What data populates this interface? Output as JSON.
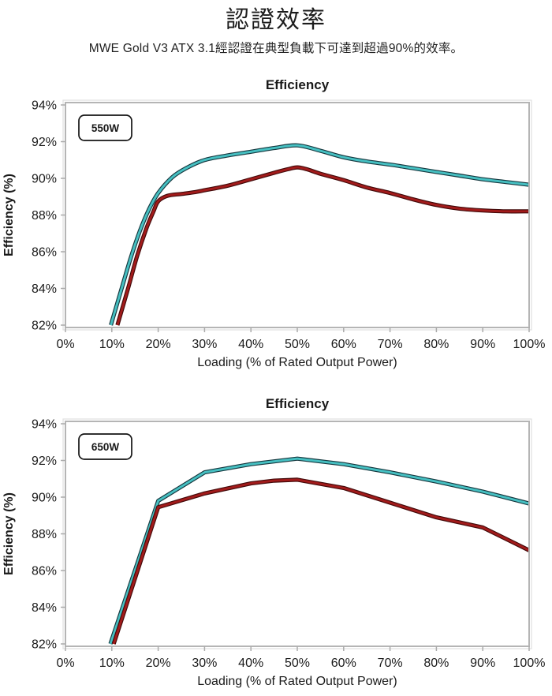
{
  "page": {
    "title": "認證效率",
    "subtitle": "MWE Gold V3 ATX 3.1經認證在典型負載下可達到超過90%的效率。"
  },
  "colors": {
    "text": "#1a1a1a",
    "plot_border_inner": "#b5b5b5",
    "plot_border_outer": "#e0e0e0",
    "tick_mark": "#ababab",
    "badge_border": "#141414",
    "teal_line": "#46C0C2",
    "teal_outline": "#16383F",
    "red_line": "#A21B1B",
    "red_outline": "#420A0A"
  },
  "chart_data": [
    {
      "type": "line",
      "title": "Efficiency",
      "badge": "550W",
      "xlabel": "Loading (% of Rated Output Power)",
      "ylabel": "Efficiency (%)",
      "xlim": [
        0,
        100
      ],
      "ylim": [
        82,
        94
      ],
      "x_tick_values": [
        0,
        10,
        20,
        30,
        40,
        50,
        60,
        70,
        80,
        90,
        100
      ],
      "x_tick_labels": [
        "0%",
        "10%",
        "20%",
        "30%",
        "40%",
        "50%",
        "60%",
        "70%",
        "80%",
        "90%",
        "100%"
      ],
      "y_tick_values": [
        94,
        92,
        90,
        88,
        86,
        84,
        82
      ],
      "y_tick_labels": [
        "94%",
        "92%",
        "90%",
        "88%",
        "86%",
        "84%",
        "82%"
      ],
      "grid": false,
      "legend": "none",
      "smooth": true,
      "series": [
        {
          "name": "efficiency-curve-teal",
          "color": "#46C0C2",
          "outline": "#16383F",
          "points": [
            [
              9.8,
              82.0
            ],
            [
              12,
              83.9
            ],
            [
              14,
              85.6
            ],
            [
              16,
              87.1
            ],
            [
              18,
              88.3
            ],
            [
              20,
              89.2
            ],
            [
              23,
              90.05
            ],
            [
              26,
              90.55
            ],
            [
              30,
              91.0
            ],
            [
              35,
              91.25
            ],
            [
              40,
              91.45
            ],
            [
              45,
              91.65
            ],
            [
              50,
              91.8
            ],
            [
              55,
              91.5
            ],
            [
              60,
              91.15
            ],
            [
              65,
              90.92
            ],
            [
              70,
              90.75
            ],
            [
              75,
              90.55
            ],
            [
              80,
              90.35
            ],
            [
              85,
              90.15
            ],
            [
              90,
              89.95
            ],
            [
              95,
              89.8
            ],
            [
              100,
              89.65
            ]
          ]
        },
        {
          "name": "efficiency-curve-red",
          "color": "#A21B1B",
          "outline": "#420A0A",
          "points": [
            [
              11.2,
              82.0
            ],
            [
              13.5,
              84.0
            ],
            [
              15.5,
              85.8
            ],
            [
              17.5,
              87.3
            ],
            [
              19,
              88.2
            ],
            [
              20,
              88.75
            ],
            [
              22,
              89.05
            ],
            [
              25,
              89.15
            ],
            [
              28,
              89.25
            ],
            [
              30,
              89.35
            ],
            [
              35,
              89.6
            ],
            [
              40,
              89.95
            ],
            [
              45,
              90.3
            ],
            [
              48,
              90.5
            ],
            [
              50,
              90.6
            ],
            [
              52,
              90.5
            ],
            [
              55,
              90.25
            ],
            [
              60,
              89.9
            ],
            [
              65,
              89.5
            ],
            [
              70,
              89.2
            ],
            [
              75,
              88.85
            ],
            [
              80,
              88.55
            ],
            [
              85,
              88.35
            ],
            [
              90,
              88.25
            ],
            [
              95,
              88.2
            ],
            [
              100,
              88.2
            ]
          ]
        }
      ]
    },
    {
      "type": "line",
      "title": "Efficiency",
      "badge": "650W",
      "xlabel": "Loading (% of Rated Output Power)",
      "ylabel": "Efficiency (%)",
      "xlim": [
        0,
        100
      ],
      "ylim": [
        82,
        94
      ],
      "x_tick_values": [
        0,
        10,
        20,
        30,
        40,
        50,
        60,
        70,
        80,
        90,
        100
      ],
      "x_tick_labels": [
        "0%",
        "10%",
        "20%",
        "30%",
        "40%",
        "50%",
        "60%",
        "70%",
        "80%",
        "90%",
        "100%"
      ],
      "y_tick_values": [
        94,
        92,
        90,
        88,
        86,
        84,
        82
      ],
      "y_tick_labels": [
        "94%",
        "92%",
        "90%",
        "88%",
        "86%",
        "84%",
        "82%"
      ],
      "grid": false,
      "legend": "none",
      "smooth": false,
      "series": [
        {
          "name": "efficiency-curve-teal",
          "color": "#46C0C2",
          "outline": "#16383F",
          "points": [
            [
              9.7,
              82.0
            ],
            [
              20,
              89.8
            ],
            [
              30,
              91.35
            ],
            [
              40,
              91.8
            ],
            [
              50,
              92.1
            ],
            [
              60,
              91.8
            ],
            [
              70,
              91.35
            ],
            [
              80,
              90.85
            ],
            [
              90,
              90.3
            ],
            [
              100,
              89.65
            ]
          ]
        },
        {
          "name": "efficiency-curve-red",
          "color": "#A21B1B",
          "outline": "#420A0A",
          "points": [
            [
              10.4,
              82.0
            ],
            [
              20,
              89.45
            ],
            [
              30,
              90.2
            ],
            [
              40,
              90.75
            ],
            [
              45,
              90.9
            ],
            [
              50,
              90.95
            ],
            [
              60,
              90.5
            ],
            [
              70,
              89.7
            ],
            [
              80,
              88.9
            ],
            [
              90,
              88.35
            ],
            [
              100,
              87.1
            ]
          ]
        }
      ]
    }
  ]
}
